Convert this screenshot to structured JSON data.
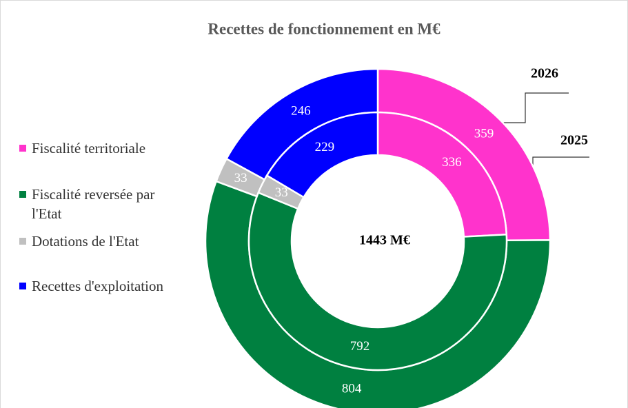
{
  "chart_data": {
    "type": "donut",
    "title": "Recettes de fonctionnement en M€",
    "center_label": "1443 M€",
    "categories": [
      "Fiscalité territoriale",
      "Fiscalité reversée par l'Etat",
      "Dotations de l'Etat",
      "Recettes d'exploitation"
    ],
    "colors": [
      "#ff33cc",
      "#008040",
      "#c0c0c0",
      "#0000ff"
    ],
    "series": [
      {
        "name": "2026",
        "values": [
          359,
          804,
          33,
          246
        ]
      },
      {
        "name": "2025",
        "values": [
          336,
          792,
          33,
          229
        ]
      }
    ],
    "legend": "left"
  }
}
